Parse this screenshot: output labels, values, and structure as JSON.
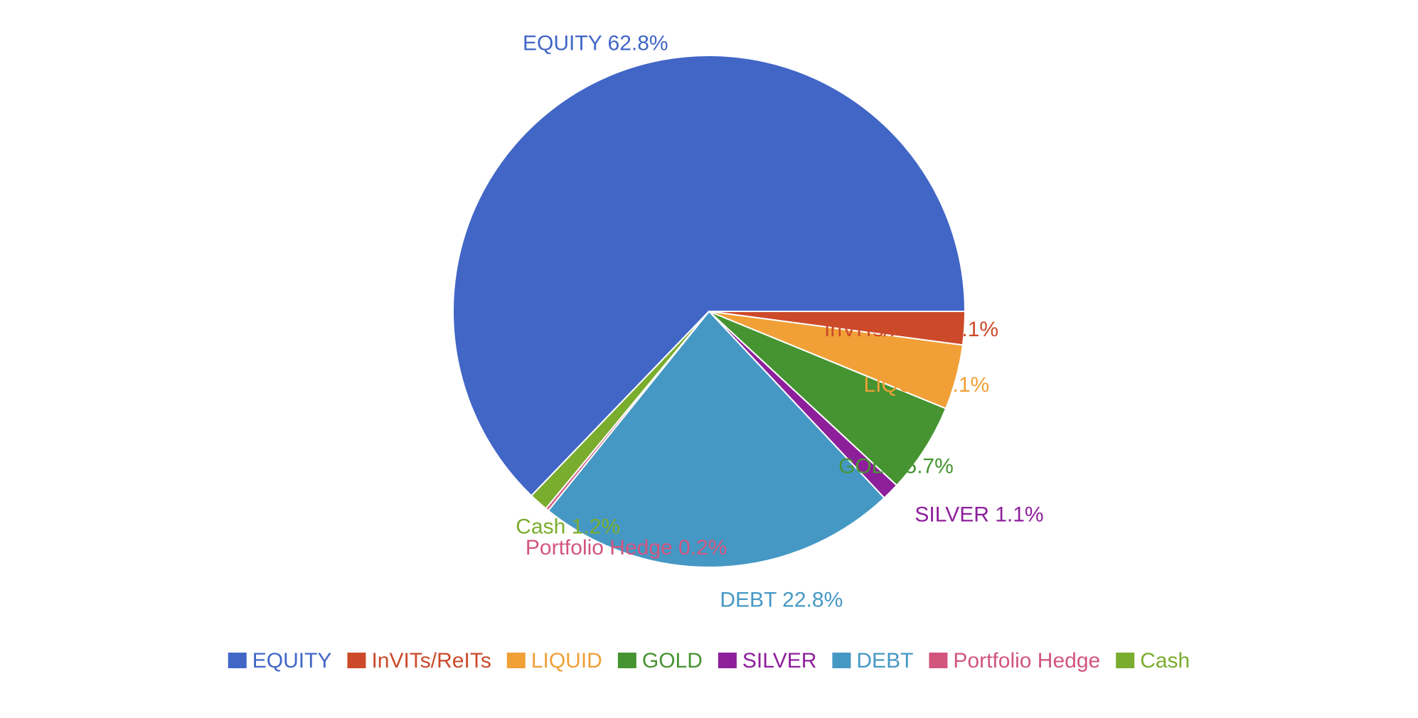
{
  "chart_data": {
    "type": "pie",
    "title": "",
    "legend_position": "bottom",
    "slices": [
      {
        "label": "EQUITY",
        "value": 62.8,
        "pct_label": "62.8%",
        "color": "#4166c6"
      },
      {
        "label": "InVITs/ReITs",
        "value": 2.1,
        "pct_label": "2.1%",
        "color": "#cc4a2a"
      },
      {
        "label": "LIQUID",
        "value": 4.1,
        "pct_label": "4.1%",
        "color": "#f0a037"
      },
      {
        "label": "GOLD",
        "value": 5.7,
        "pct_label": "5.7%",
        "color": "#469431"
      },
      {
        "label": "SILVER",
        "value": 1.1,
        "pct_label": "1.1%",
        "color": "#8d1f9b"
      },
      {
        "label": "DEBT",
        "value": 22.8,
        "pct_label": "22.8%",
        "color": "#4598c4"
      },
      {
        "label": "Portfolio Hedge",
        "value": 0.2,
        "pct_label": "0.2%",
        "color": "#d2557e"
      },
      {
        "label": "Cash",
        "value": 1.2,
        "pct_label": "1.2%",
        "color": "#7aad2e"
      }
    ]
  }
}
